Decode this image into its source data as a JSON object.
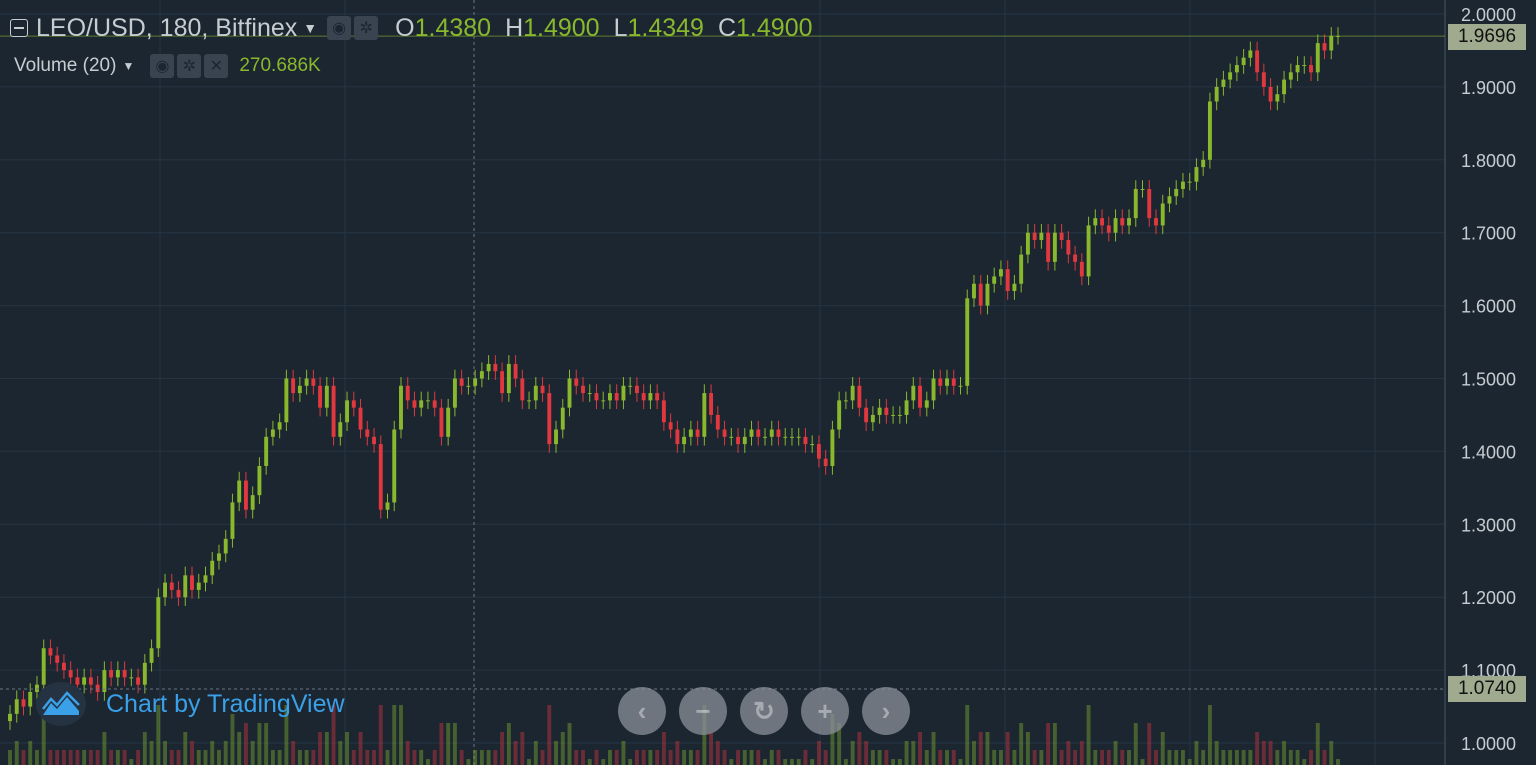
{
  "chart_data": {
    "type": "candlestick",
    "symbol": "LEO/USD",
    "interval": "180",
    "exchange": "Bitfinex",
    "ohlc": {
      "O": "1.4380",
      "H": "1.4900",
      "L": "1.4349",
      "C": "1.4900"
    },
    "volume_indicator": {
      "label": "Volume (20)",
      "value": "270.686K"
    },
    "y_axis": {
      "ticks": [
        "2.0000",
        "1.9000",
        "1.8000",
        "1.7000",
        "1.6000",
        "1.5000",
        "1.4000",
        "1.3000",
        "1.2000",
        "1.1000",
        "1.0000"
      ],
      "ylim": [
        0.99,
        2.0
      ]
    },
    "price_labels": {
      "last": "1.9696",
      "crosshair": "1.0740"
    },
    "closes": [
      1.04,
      1.06,
      1.05,
      1.07,
      1.08,
      1.13,
      1.12,
      1.11,
      1.1,
      1.09,
      1.08,
      1.09,
      1.08,
      1.07,
      1.1,
      1.09,
      1.1,
      1.09,
      1.09,
      1.08,
      1.11,
      1.13,
      1.2,
      1.22,
      1.21,
      1.2,
      1.23,
      1.21,
      1.22,
      1.23,
      1.25,
      1.26,
      1.28,
      1.33,
      1.36,
      1.32,
      1.34,
      1.38,
      1.42,
      1.43,
      1.44,
      1.5,
      1.48,
      1.49,
      1.5,
      1.49,
      1.46,
      1.49,
      1.42,
      1.44,
      1.47,
      1.46,
      1.43,
      1.42,
      1.41,
      1.32,
      1.33,
      1.43,
      1.49,
      1.47,
      1.46,
      1.47,
      1.47,
      1.46,
      1.42,
      1.46,
      1.5,
      1.49,
      1.49,
      1.5,
      1.51,
      1.52,
      1.51,
      1.48,
      1.52,
      1.5,
      1.47,
      1.47,
      1.49,
      1.48,
      1.41,
      1.43,
      1.46,
      1.5,
      1.49,
      1.48,
      1.48,
      1.47,
      1.47,
      1.48,
      1.47,
      1.49,
      1.49,
      1.48,
      1.47,
      1.48,
      1.47,
      1.44,
      1.43,
      1.41,
      1.42,
      1.43,
      1.42,
      1.48,
      1.45,
      1.43,
      1.42,
      1.42,
      1.41,
      1.42,
      1.43,
      1.42,
      1.42,
      1.43,
      1.42,
      1.42,
      1.42,
      1.42,
      1.41,
      1.41,
      1.39,
      1.38,
      1.43,
      1.47,
      1.47,
      1.49,
      1.46,
      1.44,
      1.45,
      1.46,
      1.45,
      1.45,
      1.45,
      1.47,
      1.49,
      1.46,
      1.47,
      1.5,
      1.49,
      1.5,
      1.49,
      1.49,
      1.61,
      1.63,
      1.6,
      1.63,
      1.64,
      1.65,
      1.62,
      1.63,
      1.67,
      1.7,
      1.69,
      1.7,
      1.66,
      1.7,
      1.69,
      1.67,
      1.66,
      1.64,
      1.71,
      1.72,
      1.71,
      1.7,
      1.72,
      1.71,
      1.72,
      1.76,
      1.76,
      1.72,
      1.71,
      1.74,
      1.75,
      1.76,
      1.77,
      1.77,
      1.79,
      1.8,
      1.88,
      1.9,
      1.91,
      1.92,
      1.93,
      1.94,
      1.95,
      1.92,
      1.9,
      1.88,
      1.89,
      1.91,
      1.92,
      1.93,
      1.93,
      1.92,
      1.96,
      1.95,
      1.97,
      1.97
    ]
  },
  "controls": {
    "prev_glyph": "‹",
    "zoom_out_glyph": "−",
    "reset_glyph": "↻",
    "zoom_in_glyph": "+",
    "next_glyph": "›"
  },
  "watermark": {
    "text": "Chart by TradingView"
  },
  "colors": {
    "up": "#8ab82d",
    "down": "#e0383e",
    "background": "#1b2631",
    "grid": "#263442",
    "axis_text": "#c7ccd1",
    "accent": "#3aa0e8"
  },
  "icons": {
    "collapse": "collapse-icon",
    "eye": "eye-icon",
    "gear": "gear-icon",
    "close": "close-icon",
    "caret": "caret-down-icon"
  }
}
